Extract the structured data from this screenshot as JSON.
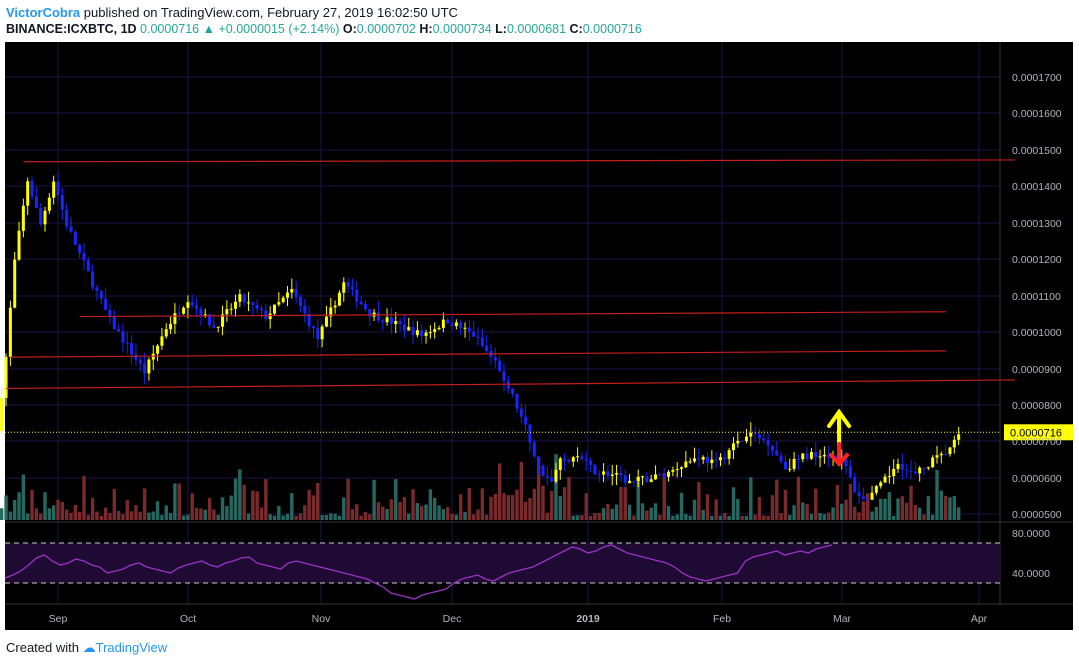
{
  "header": {
    "author": "VictorCobra",
    "published_text": "published on TradingView.com, February 27, 2019 16:02:50 UTC",
    "symbol": "BINANCE:ICXBTC, 1D",
    "last": "0.0000716",
    "change": "+0.0000015 (+2.14%)",
    "open_label": "O:",
    "open": "0.0000702",
    "high_label": "H:",
    "high": "0.0000734",
    "low_label": "L:",
    "low": "0.0000681",
    "close_label": "C:",
    "close": "0.0000716"
  },
  "footer": {
    "created_with": "Created with",
    "brand": "TradingView"
  },
  "colors": {
    "background": "#000000",
    "grid": "#1e1446",
    "up_candle": "#ffff00",
    "down_candle": "#1a24ff",
    "resistance_line": "#c41e1e",
    "price_tag": "#ffff00",
    "rsi_line": "#9b32c8",
    "rsi_band": "#1e0a32",
    "vol_up": "#26685f",
    "vol_down": "#7a2a2a",
    "arrow_up": "#ffff00",
    "arrow_down": "#ff2020"
  },
  "chart_data": {
    "type": "candlestick",
    "x_ticks": [
      "Sep",
      "Oct",
      "Nov",
      "Dec",
      "2019",
      "Feb",
      "Mar",
      "Apr"
    ],
    "y_ticks": [
      "0.0000500",
      "0.0000600",
      "0.0000700",
      "0.0000800",
      "0.0000900",
      "0.0001000",
      "0.0001100",
      "0.0001200",
      "0.0001300",
      "0.0001400",
      "0.0001500",
      "0.0001600",
      "0.0001700"
    ],
    "ylim": [
      4.78e-05,
      0.0001775
    ],
    "last_price_label": "0.0000716",
    "last_price": 7.16e-05,
    "rsi": {
      "ticks": [
        "80.0000",
        "40.0000"
      ],
      "upper_band": 70,
      "lower_band": 30,
      "values": [
        35,
        38,
        42,
        48,
        55,
        58,
        52,
        48,
        50,
        54,
        52,
        48,
        46,
        40,
        42,
        44,
        48,
        50,
        46,
        44,
        42,
        40,
        45,
        48,
        50,
        52,
        48,
        46,
        50,
        52,
        55,
        56,
        50,
        48,
        46,
        44,
        50,
        52,
        50,
        48,
        46,
        44,
        42,
        40,
        38,
        36,
        34,
        30,
        26,
        20,
        18,
        16,
        14,
        18,
        20,
        22,
        24,
        30,
        34,
        36,
        38,
        34,
        32,
        36,
        40,
        42,
        44,
        46,
        50,
        54,
        58,
        62,
        66,
        64,
        60,
        62,
        66,
        68,
        64,
        60,
        58,
        56,
        54,
        52,
        50,
        46,
        40,
        36,
        34,
        32,
        34,
        36,
        38,
        40,
        52,
        56,
        58,
        60,
        62,
        58,
        60,
        62,
        60,
        64,
        66,
        68
      ]
    },
    "trendlines": [
      {
        "from": [
          "2018-08-24",
          0.000145
        ],
        "to": [
          "2019-04-10",
          0.0001455
        ]
      },
      {
        "from": [
          "2018-09-06",
          0.000103
        ],
        "to": [
          "2019-03-25",
          0.0001043
        ]
      },
      {
        "from": [
          "2018-08-21",
          9.2e-05
        ],
        "to": [
          "2019-03-25",
          9.37e-05
        ]
      },
      {
        "from": [
          "2018-08-20",
          8.35e-05
        ],
        "to": [
          "2019-04-10",
          8.58e-05
        ]
      }
    ],
    "annotations": [
      {
        "type": "arrow-up",
        "date": "2019-02-27"
      },
      {
        "type": "arrow-down",
        "date": "2019-02-27"
      }
    ]
  }
}
